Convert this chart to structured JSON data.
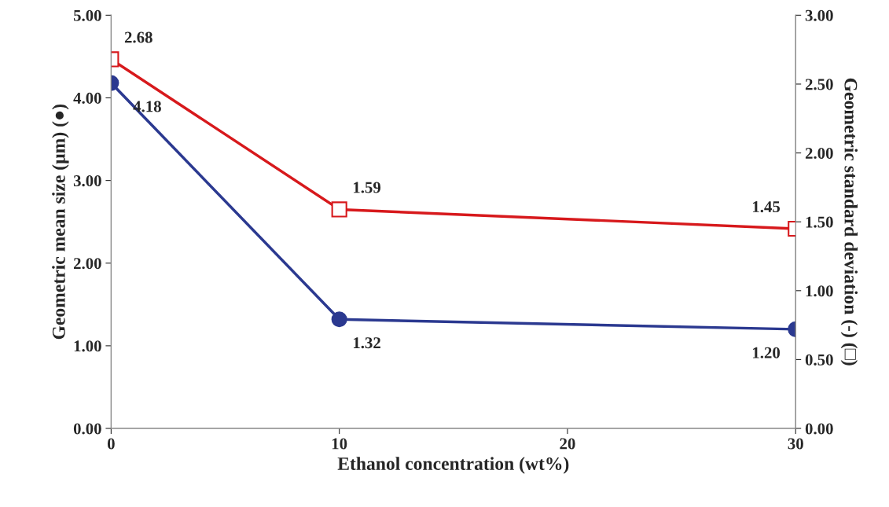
{
  "chart_data": {
    "type": "line",
    "xlabel": "Ethanol concentration (wt%)",
    "ylabel": "Geometric mean size (µm) (●)",
    "y2label": "Geometric standard deviation (-) (□)",
    "x": [
      0,
      10,
      30
    ],
    "series": [
      {
        "color": "#2b3990",
        "values": [
          4.18,
          1.32,
          1.2
        ],
        "value_labels": [
          "4.18",
          "1.32",
          "1.20"
        ],
        "marker": "circle"
      },
      {
        "color": "#d7191c",
        "values": [
          2.68,
          1.59,
          1.45
        ],
        "value_labels": [
          "2.68",
          "1.59",
          "1.45"
        ],
        "marker": "square",
        "axis": "y2"
      }
    ],
    "xlim": [
      0,
      30
    ],
    "xticks": [
      0,
      10,
      20,
      30
    ],
    "ylim": [
      0,
      5
    ],
    "yticks": [
      {
        "value": 0,
        "label": "0.00"
      },
      {
        "value": 1,
        "label": "1.00"
      },
      {
        "value": 2,
        "label": "2.00"
      },
      {
        "value": 3,
        "label": "3.00"
      },
      {
        "value": 4,
        "label": "4.00"
      },
      {
        "value": 5,
        "label": "5.00"
      }
    ],
    "y2lim": [
      0,
      3
    ],
    "y2ticks": [
      {
        "value": 0,
        "label": "0.00"
      },
      {
        "value": 0.5,
        "label": "0.50"
      },
      {
        "value": 1,
        "label": "1.00"
      },
      {
        "value": 1.5,
        "label": "1.50"
      },
      {
        "value": 2,
        "label": "2.00"
      },
      {
        "value": 2.5,
        "label": "2.50"
      },
      {
        "value": 3,
        "label": "3.00"
      }
    ],
    "grid": false,
    "legend": false,
    "line_style": "solid"
  }
}
